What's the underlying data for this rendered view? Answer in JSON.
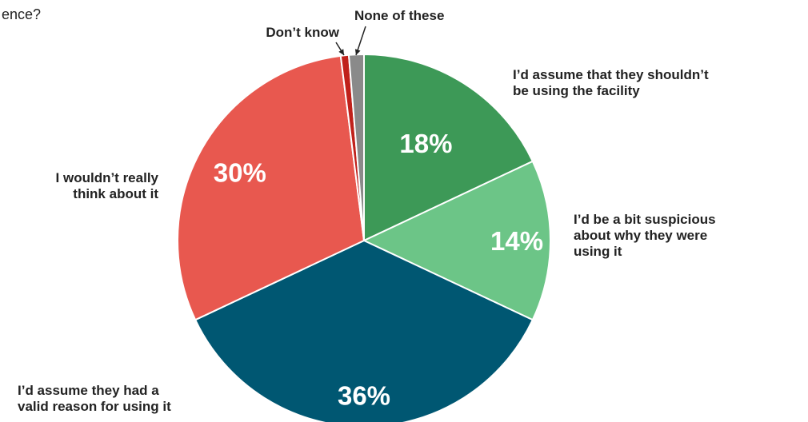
{
  "question_fragment": "ence?",
  "chart_data": {
    "type": "pie",
    "title": "",
    "slices": [
      {
        "label": "I’d assume that they shouldn’t be using the facility",
        "label_lines": [
          "I’d assume that they shouldn’t",
          "be using the facility"
        ],
        "value": 18,
        "display": "18%",
        "color": "#3d9957"
      },
      {
        "label": "I’d be a bit suspicious about why they were using it",
        "label_lines": [
          "I’d be a bit suspicious",
          "about why they were",
          "using it"
        ],
        "value": 14,
        "display": "14%",
        "color": "#6cc587"
      },
      {
        "label": "I’d assume they had a valid reason for using it",
        "label_lines": [
          "I’d assume they had a",
          "valid reason for using it"
        ],
        "value": 36,
        "display": "36%",
        "color": "#005772"
      },
      {
        "label": "I wouldn’t really think about it",
        "label_lines": [
          "I wouldn’t really",
          "think about it"
        ],
        "value": 30,
        "display": "30%",
        "color": "#e8584f"
      },
      {
        "label": "Don’t know",
        "label_lines": [
          "Don’t know"
        ],
        "value": 0.7,
        "display": "",
        "color": "#c0211b"
      },
      {
        "label": "None of these",
        "label_lines": [
          "None of these"
        ],
        "value": 1.3,
        "display": "",
        "color": "#8a8a8a"
      }
    ],
    "start_angle_deg": 0,
    "direction": "clockwise"
  }
}
